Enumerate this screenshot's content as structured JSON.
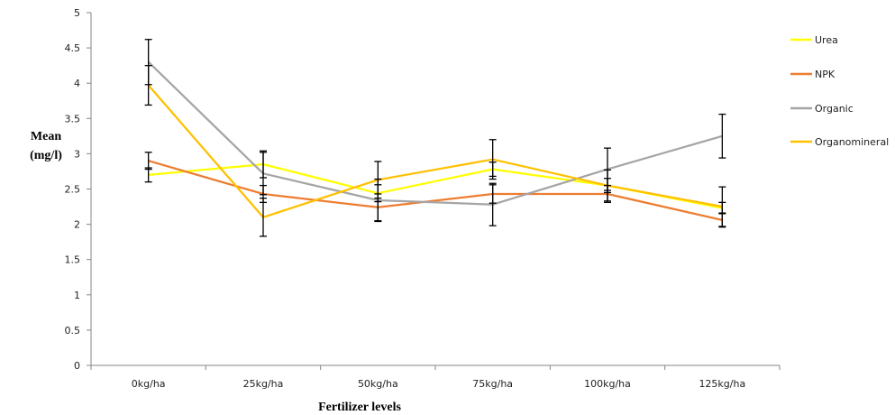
{
  "chart_data": {
    "type": "line",
    "title": "",
    "xlabel": "Fertilizer levels",
    "ylabel_lines": [
      "Mean",
      "(mg/l)"
    ],
    "categories": [
      "0kg/ha",
      "25kg/ha",
      "50kg/ha",
      "75kg/ha",
      "100kg/ha",
      "125kg/ha"
    ],
    "ylim": [
      0,
      5
    ],
    "yticks": [
      "0",
      "0.5",
      "1",
      "1.5",
      "2",
      "2.5",
      "3",
      "3.5",
      "4",
      "4.5",
      "5"
    ],
    "ytick_values": [
      0,
      0.5,
      1,
      1.5,
      2,
      2.5,
      3,
      3.5,
      4,
      4.5,
      5
    ],
    "grid": false,
    "legend_position": "right",
    "series": [
      {
        "name": "Urea",
        "color": "#FFFF00",
        "values": [
          2.7,
          2.85,
          2.44,
          2.78,
          2.55,
          2.23
        ],
        "errors": [
          0.1,
          0.19,
          0.12,
          0.1,
          0.1,
          0.08
        ]
      },
      {
        "name": "NPK",
        "color": "#ED7D31",
        "values": [
          2.9,
          2.43,
          2.24,
          2.43,
          2.43,
          2.06
        ],
        "errors": [
          0.12,
          0.12,
          0.19,
          0.13,
          0.12,
          0.1
        ]
      },
      {
        "name": "Organic",
        "color": "#A5A5A5",
        "values": [
          4.3,
          2.72,
          2.34,
          2.28,
          2.78,
          3.25
        ],
        "errors": [
          0.32,
          0.3,
          0.3,
          0.3,
          0.3,
          0.31
        ]
      },
      {
        "name": "Organomineral",
        "color": "#FFC000",
        "values": [
          3.97,
          2.1,
          2.63,
          2.92,
          2.55,
          2.25
        ],
        "errors": [
          0.28,
          0.27,
          0.26,
          0.28,
          0.22,
          0.28
        ]
      }
    ]
  }
}
